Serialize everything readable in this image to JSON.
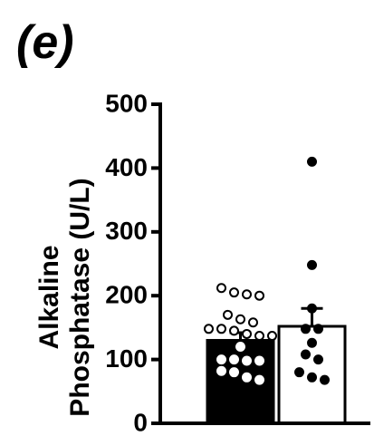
{
  "panel_label": "(e)",
  "chart_data": {
    "type": "bar",
    "title": "",
    "ylabel_lines": [
      "Alkaline",
      "Phosphatase (U/L)"
    ],
    "ylim": [
      0,
      500
    ],
    "yticks": [
      0,
      100,
      200,
      300,
      400,
      500
    ],
    "grid": false,
    "series": [
      {
        "fill": "#000000",
        "mean": 130,
        "sem": 12,
        "points": [
          212,
          205,
          200,
          202,
          170,
          163,
          158,
          148,
          145,
          148,
          137,
          140,
          137,
          120,
          98,
          100,
          98,
          100,
          82,
          80,
          72,
          68
        ]
      },
      {
        "fill": "#ffffff",
        "mean": 152,
        "sem": 28,
        "points": [
          410,
          248,
          180,
          148,
          148,
          126,
          108,
          100,
          80,
          72,
          68
        ]
      }
    ]
  }
}
